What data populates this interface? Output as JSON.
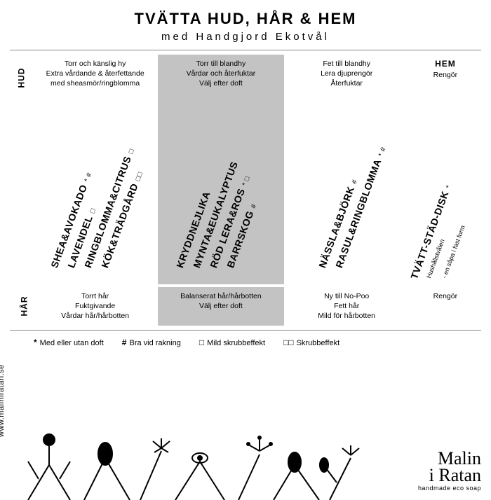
{
  "title": "TVÄTTA HUD, HÅR & HEM",
  "subtitle": "med Handgjord Ekotvål",
  "side_labels": {
    "hud": "HUD",
    "har": "HÅR",
    "hem": "HEM"
  },
  "columns": [
    {
      "shaded": false,
      "hud_desc": "Torr och känslig hy\nExtra vårdande & återfettande\nmed sheasmör/ringblomma",
      "products": [
        {
          "name": "SHEA&AVOKADO",
          "marks": "* #"
        },
        {
          "name": "LAVENDEL",
          "marks": "□"
        },
        {
          "name": "RINGBLOMMA&CITRUS",
          "marks": "□"
        },
        {
          "name": "KÖK&TRÄDGÅRD",
          "marks": "□□"
        }
      ],
      "har_desc": "Torrt hår\nFuktgivande\nVårdar hår/hårbotten"
    },
    {
      "shaded": true,
      "hud_desc": "Torr till blandhy\nVårdar och återfuktar\nVälj efter doft",
      "products": [
        {
          "name": "KRYDDNEJLIKA",
          "marks": ""
        },
        {
          "name": "MYNTA&EUKALYPTUS",
          "marks": ""
        },
        {
          "name": "RÖD LERA&ROS",
          "marks": "* □"
        },
        {
          "name": "BARRSKOG",
          "marks": "#"
        }
      ],
      "har_desc": "Balanserat hår/hårbotten\nVälj efter doft"
    },
    {
      "shaded": false,
      "hud_desc": "Fet till blandhy\nLera djuprengör\nÅterfuktar",
      "products": [
        {
          "name": "NÄSSLA&BJÖRK",
          "marks": "#"
        },
        {
          "name": "RASUL&RINGBLOMMA",
          "marks": "* #"
        }
      ],
      "har_desc": "Ny till No-Poo\nFett hår\nMild för hårbotten"
    },
    {
      "shaded": false,
      "is_hem": true,
      "hud_desc": "Rengör",
      "products": [
        {
          "name": "TVÄTT-STÄD-DISK",
          "marks": "*"
        }
      ],
      "sub_lines": [
        "Hushållstvålen",
        "- en såpa i fast form"
      ],
      "har_desc": "Rengör"
    }
  ],
  "legend": [
    {
      "sym": "*",
      "text": "Med eller utan doft"
    },
    {
      "sym": "#",
      "text": "Bra vid rakning"
    },
    {
      "sym": "□",
      "text": "Mild skrubbeffekt"
    },
    {
      "sym": "□□",
      "text": "Skrubbeffekt"
    }
  ],
  "url": "www.maliniratan.se",
  "brand_line1": "Malin",
  "brand_line2": "i Ratan",
  "brand_tag": "handmade eco soap",
  "colors": {
    "bg": "#ffffff",
    "text": "#000000",
    "shade": "#c3c3c3",
    "rule": "#888888"
  }
}
